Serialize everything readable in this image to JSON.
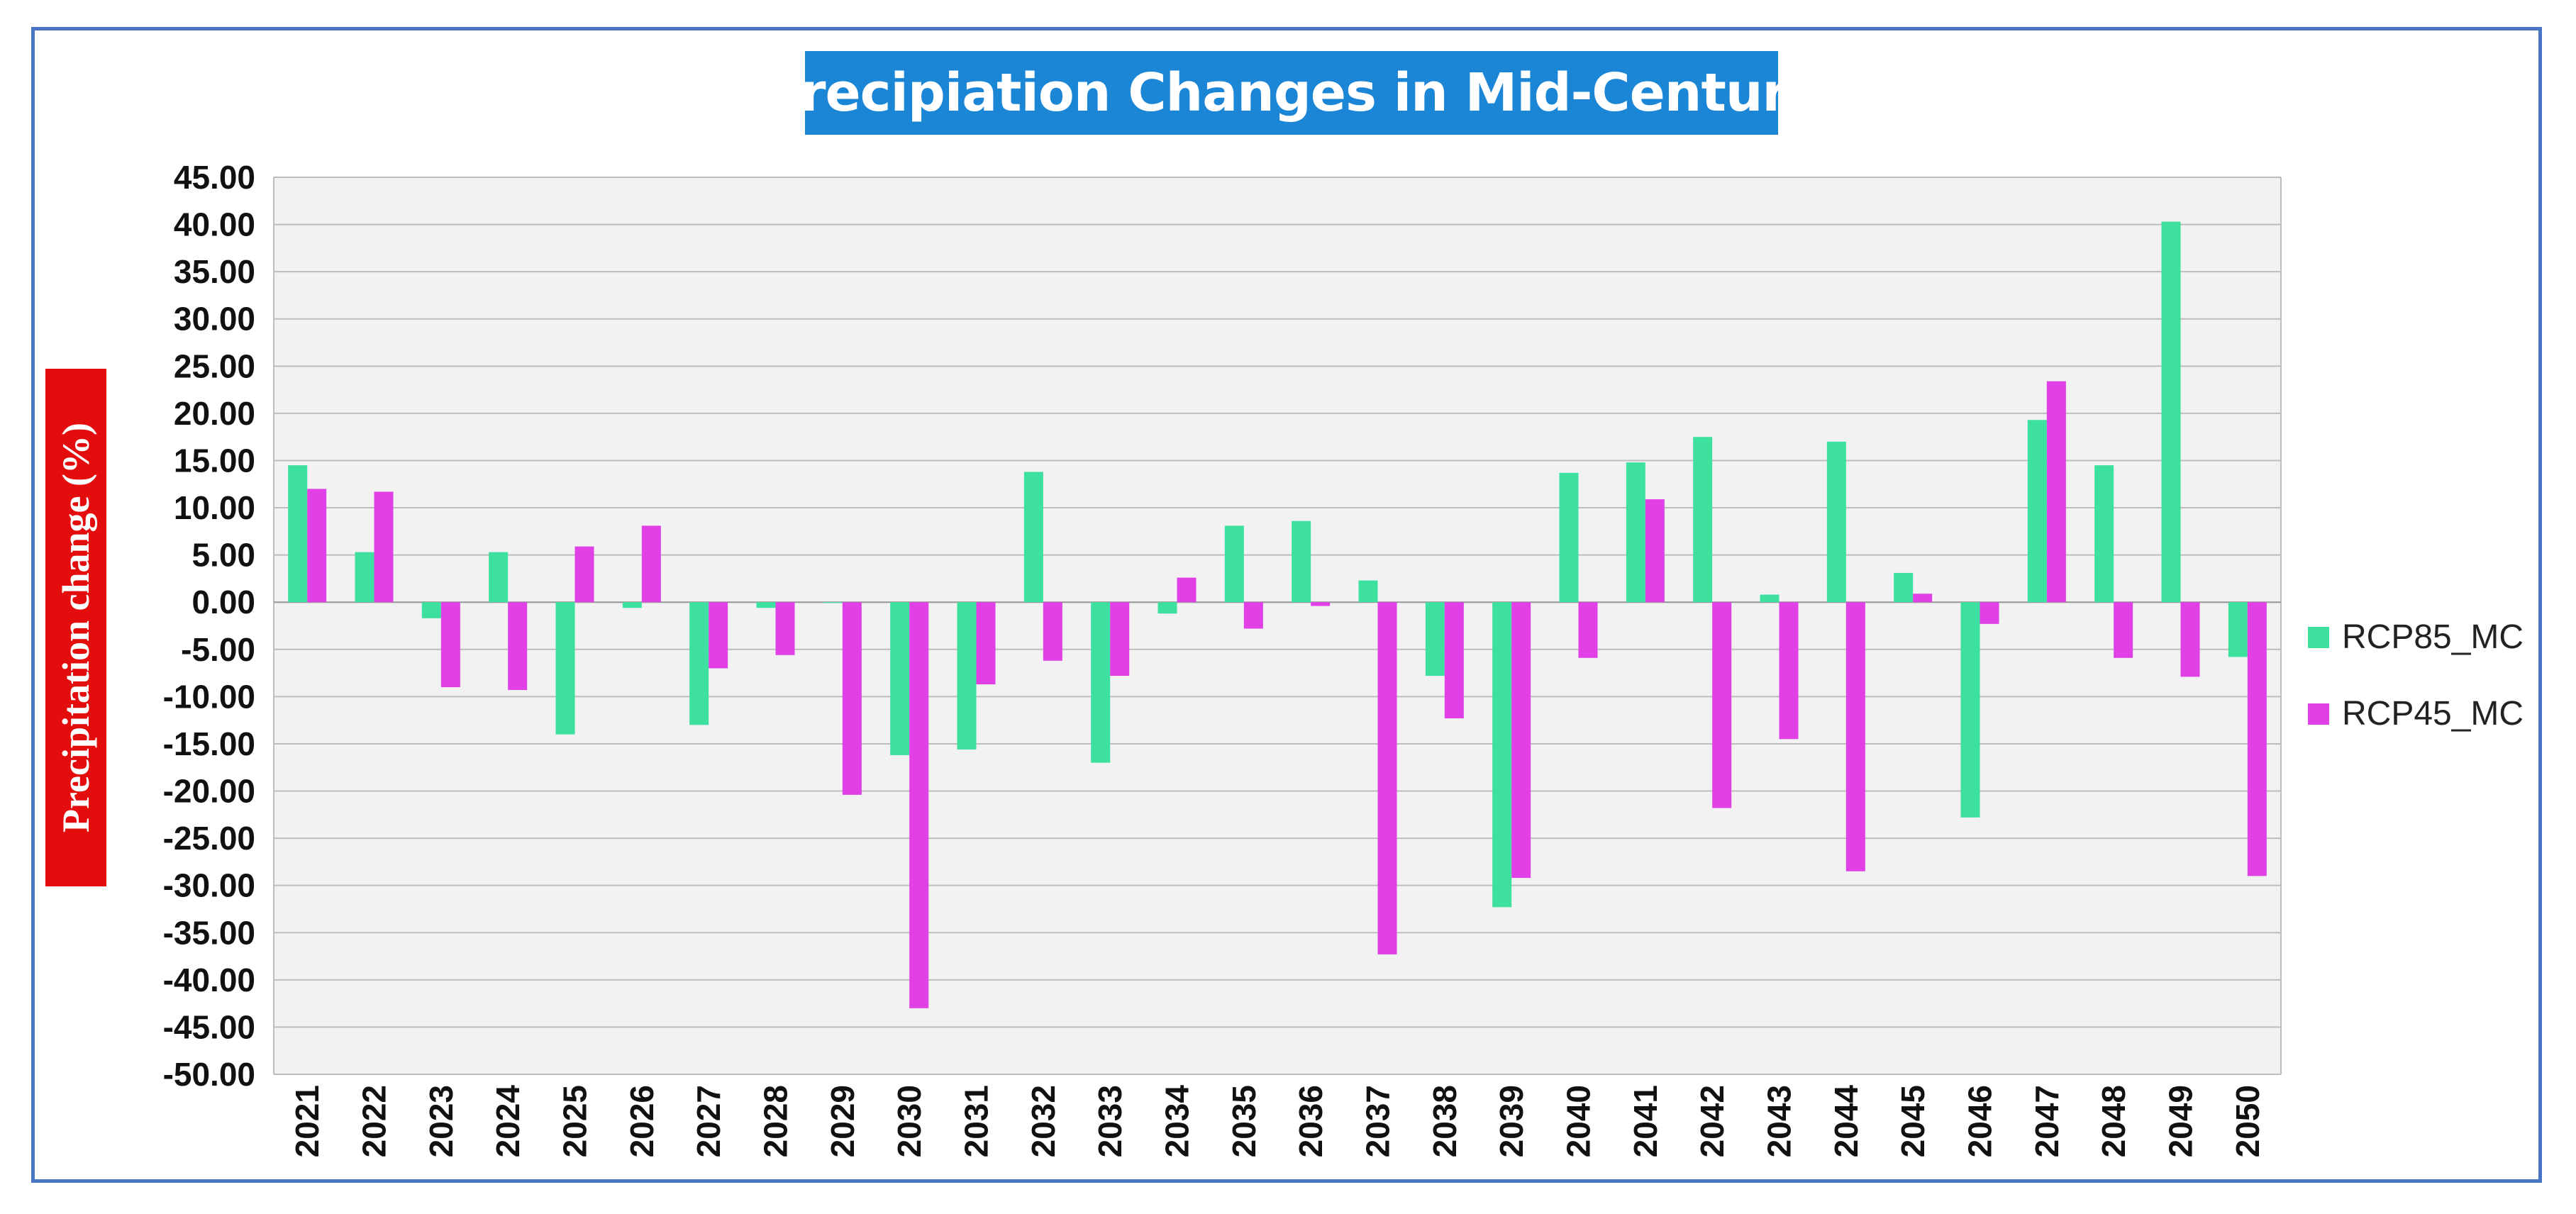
{
  "colors": {
    "frame": "#4a74c4",
    "title_bg": "#1b86d6",
    "ylabel_bg": "#e30d0d",
    "plot_bg": "#f2f2f2",
    "grid": "#bdbdbd",
    "rcp85": "#3ee0a0",
    "rcp45": "#e040e6"
  },
  "chart_data": {
    "type": "bar",
    "title": "Precipiation Changes in Mid-Century",
    "xlabel": "",
    "ylabel": "Precipitation change  (%)",
    "ylim": [
      -50,
      45
    ],
    "ytick_step": 5,
    "yticks": [
      "45.00",
      "40.00",
      "35.00",
      "30.00",
      "25.00",
      "20.00",
      "15.00",
      "10.00",
      "5.00",
      "0.00",
      "-5.00",
      "-10.00",
      "-15.00",
      "-20.00",
      "-25.00",
      "-30.00",
      "-35.00",
      "-40.00",
      "-45.00",
      "-50.00"
    ],
    "grid": true,
    "legend_position": "right",
    "categories": [
      "2021",
      "2022",
      "2023",
      "2024",
      "2025",
      "2026",
      "2027",
      "2028",
      "2029",
      "2030",
      "2031",
      "2032",
      "2033",
      "2034",
      "2035",
      "2036",
      "2037",
      "2038",
      "2039",
      "2040",
      "2041",
      "2042",
      "2043",
      "2044",
      "2045",
      "2046",
      "2047",
      "2048",
      "2049",
      "2050"
    ],
    "series": [
      {
        "name": "RCP85_MC",
        "values": [
          14.5,
          5.3,
          -1.7,
          5.3,
          -14.0,
          -0.6,
          -13.0,
          -0.6,
          0.0,
          -16.2,
          -15.6,
          13.8,
          -17.0,
          -1.2,
          8.1,
          8.6,
          2.3,
          -7.8,
          -32.3,
          13.7,
          14.8,
          17.5,
          0.8,
          17.0,
          3.1,
          -22.8,
          19.3,
          14.5,
          40.3,
          -5.8
        ]
      },
      {
        "name": "RCP45_MC",
        "values": [
          12.0,
          11.7,
          -9.0,
          -9.3,
          5.9,
          8.1,
          -7.0,
          -5.6,
          -20.4,
          -43.0,
          -8.7,
          -6.2,
          -7.8,
          2.6,
          -2.8,
          -0.4,
          -37.3,
          -12.3,
          -29.2,
          -5.9,
          10.9,
          -21.8,
          -14.5,
          -28.5,
          0.9,
          -2.3,
          23.4,
          -5.9,
          -7.9,
          -29.0
        ]
      }
    ]
  }
}
